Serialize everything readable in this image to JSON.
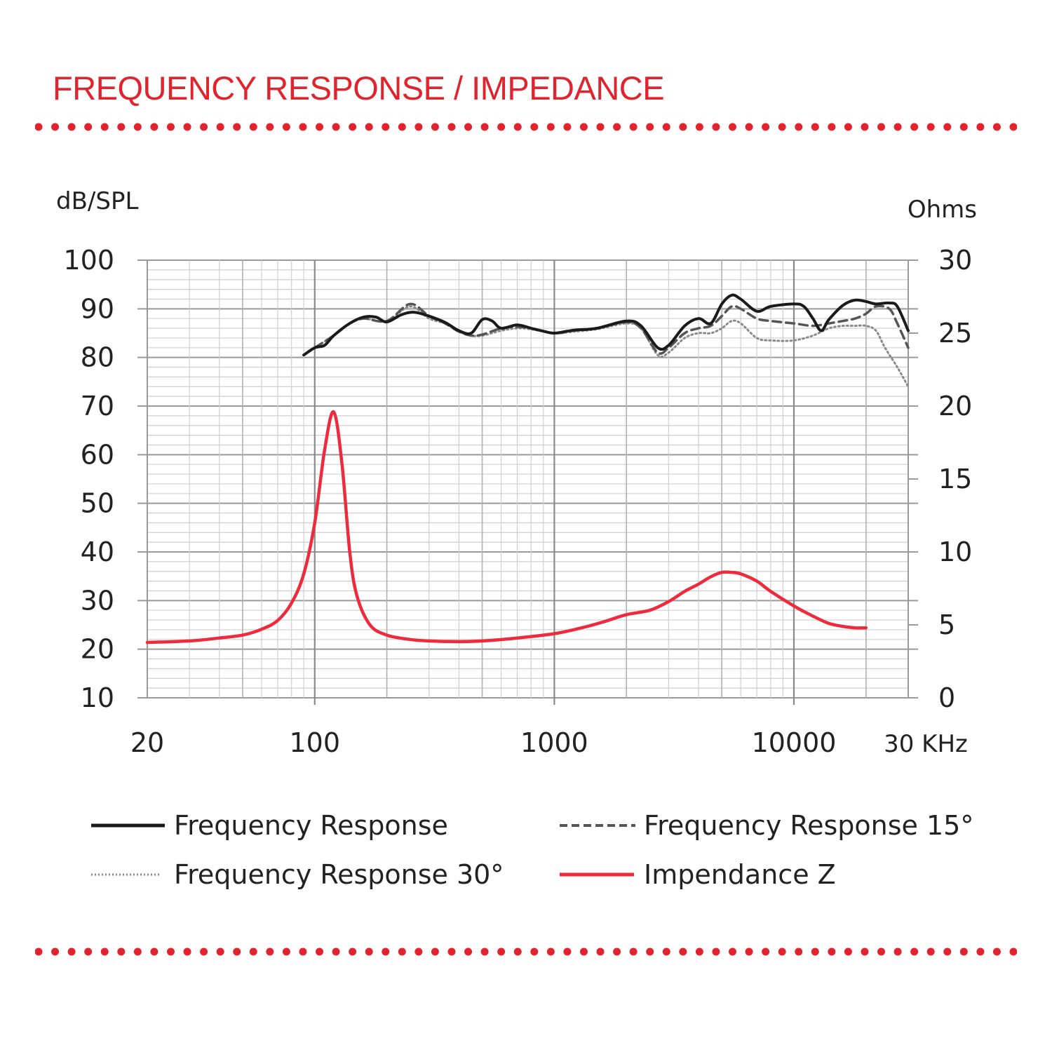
{
  "header": {
    "title": "FREQUENCY RESPONSE / IMPEDANCE"
  },
  "colors": {
    "accent_red": "#e0232d",
    "grid_major": "#9a9a9a",
    "grid_minor": "#cfcfcf",
    "response_black": "#1a1a1a",
    "response_15": "#555555",
    "response_30": "#8a8a8a",
    "impedance_red": "#ee2a3d"
  },
  "chart_data": {
    "type": "line",
    "title": "",
    "xlabel": "",
    "ylabel_left": "dB/SPL",
    "ylabel_right": "Ohms",
    "x_scale": "log",
    "xlim": [
      20,
      30000
    ],
    "ylim_left": [
      10,
      100
    ],
    "ylim_right": [
      0,
      30
    ],
    "grid": true,
    "x_ticks": [
      {
        "value": 20,
        "label": "20"
      },
      {
        "value": 100,
        "label": "100"
      },
      {
        "value": 1000,
        "label": "1000"
      },
      {
        "value": 10000,
        "label": "10000"
      },
      {
        "value": 30000,
        "label": "30 KHz"
      }
    ],
    "y_ticks_left": [
      "100",
      "90",
      "80",
      "70",
      "60",
      "50",
      "40",
      "30",
      "20",
      "10"
    ],
    "y_ticks_right": [
      "30",
      "25",
      "20",
      "15",
      "10",
      "5",
      "0"
    ],
    "series": [
      {
        "name": "Frequency Response",
        "axis": "left",
        "style": "solid",
        "points": [
          [
            90,
            80.5
          ],
          [
            100,
            82
          ],
          [
            110,
            82.5
          ],
          [
            120,
            84.5
          ],
          [
            140,
            87
          ],
          [
            160,
            88.3
          ],
          [
            180,
            88.3
          ],
          [
            200,
            87.3
          ],
          [
            230,
            88.8
          ],
          [
            260,
            89.3
          ],
          [
            300,
            88.5
          ],
          [
            350,
            87.2
          ],
          [
            400,
            85.5
          ],
          [
            450,
            85
          ],
          [
            500,
            87.8
          ],
          [
            550,
            87.5
          ],
          [
            600,
            86
          ],
          [
            700,
            86.7
          ],
          [
            800,
            86
          ],
          [
            900,
            85.4
          ],
          [
            1000,
            85
          ],
          [
            1200,
            85.6
          ],
          [
            1500,
            86
          ],
          [
            2000,
            87.5
          ],
          [
            2300,
            86.5
          ],
          [
            2700,
            82
          ],
          [
            3000,
            82.5
          ],
          [
            3500,
            86.5
          ],
          [
            4000,
            88
          ],
          [
            4500,
            87
          ],
          [
            5000,
            91
          ],
          [
            5500,
            92.8
          ],
          [
            6000,
            92
          ],
          [
            7000,
            89.5
          ],
          [
            8000,
            90.5
          ],
          [
            10000,
            91
          ],
          [
            11000,
            90.5
          ],
          [
            12000,
            88
          ],
          [
            13000,
            85.5
          ],
          [
            14000,
            87.8
          ],
          [
            16000,
            90.7
          ],
          [
            18000,
            91.8
          ],
          [
            20000,
            91.5
          ],
          [
            22000,
            91
          ],
          [
            25000,
            91.2
          ],
          [
            27000,
            90.5
          ],
          [
            30000,
            85.5
          ]
        ]
      },
      {
        "name": "Frequency Response 15°",
        "axis": "left",
        "style": "dashed",
        "points": [
          [
            90,
            80.5
          ],
          [
            100,
            82
          ],
          [
            120,
            84.5
          ],
          [
            140,
            87
          ],
          [
            160,
            88
          ],
          [
            200,
            87.5
          ],
          [
            250,
            91
          ],
          [
            300,
            88.5
          ],
          [
            350,
            87
          ],
          [
            400,
            85.3
          ],
          [
            450,
            84.5
          ],
          [
            500,
            84.7
          ],
          [
            600,
            86
          ],
          [
            700,
            86.3
          ],
          [
            800,
            86
          ],
          [
            1000,
            85
          ],
          [
            1200,
            85.5
          ],
          [
            1500,
            86
          ],
          [
            2000,
            87.3
          ],
          [
            2300,
            86
          ],
          [
            2700,
            81
          ],
          [
            3000,
            82
          ],
          [
            3500,
            85
          ],
          [
            4000,
            86
          ],
          [
            4500,
            86.5
          ],
          [
            5000,
            88.5
          ],
          [
            5500,
            90.5
          ],
          [
            6000,
            90
          ],
          [
            7000,
            88
          ],
          [
            8000,
            87.5
          ],
          [
            10000,
            87
          ],
          [
            12000,
            86.5
          ],
          [
            14000,
            87
          ],
          [
            16000,
            87.5
          ],
          [
            18000,
            88
          ],
          [
            20000,
            89
          ],
          [
            22000,
            90.5
          ],
          [
            25000,
            90
          ],
          [
            27000,
            87
          ],
          [
            30000,
            82
          ]
        ]
      },
      {
        "name": "Frequency Response 30°",
        "axis": "left",
        "style": "dotted",
        "points": [
          [
            90,
            80.5
          ],
          [
            100,
            82
          ],
          [
            120,
            84.5
          ],
          [
            140,
            87
          ],
          [
            160,
            88
          ],
          [
            200,
            87.5
          ],
          [
            250,
            90.5
          ],
          [
            300,
            88
          ],
          [
            350,
            87
          ],
          [
            400,
            85.3
          ],
          [
            450,
            84.5
          ],
          [
            500,
            84.5
          ],
          [
            600,
            85.5
          ],
          [
            700,
            86
          ],
          [
            800,
            85.8
          ],
          [
            1000,
            85
          ],
          [
            1200,
            85.3
          ],
          [
            1500,
            85.8
          ],
          [
            2000,
            87
          ],
          [
            2300,
            86
          ],
          [
            2700,
            80.5
          ],
          [
            3000,
            81
          ],
          [
            3500,
            84
          ],
          [
            4000,
            85
          ],
          [
            4500,
            85
          ],
          [
            5000,
            86
          ],
          [
            5500,
            87.5
          ],
          [
            6000,
            87
          ],
          [
            7000,
            84
          ],
          [
            8000,
            83.5
          ],
          [
            10000,
            83.5
          ],
          [
            12000,
            84.5
          ],
          [
            14000,
            86
          ],
          [
            16000,
            86.5
          ],
          [
            18000,
            86.5
          ],
          [
            20000,
            86.5
          ],
          [
            22000,
            85.5
          ],
          [
            24000,
            82
          ],
          [
            27000,
            78
          ],
          [
            30000,
            74
          ]
        ]
      },
      {
        "name": "Impendance Z",
        "axis": "right",
        "style": "solid",
        "points": [
          [
            20,
            3.8
          ],
          [
            30,
            3.9
          ],
          [
            40,
            4.1
          ],
          [
            50,
            4.3
          ],
          [
            60,
            4.7
          ],
          [
            70,
            5.3
          ],
          [
            80,
            6.5
          ],
          [
            90,
            8.5
          ],
          [
            100,
            12
          ],
          [
            110,
            17
          ],
          [
            120,
            19.6
          ],
          [
            130,
            16
          ],
          [
            140,
            10
          ],
          [
            150,
            7
          ],
          [
            170,
            5
          ],
          [
            200,
            4.3
          ],
          [
            250,
            4.0
          ],
          [
            300,
            3.9
          ],
          [
            400,
            3.85
          ],
          [
            500,
            3.9
          ],
          [
            700,
            4.1
          ],
          [
            1000,
            4.4
          ],
          [
            1300,
            4.8
          ],
          [
            1600,
            5.2
          ],
          [
            2000,
            5.7
          ],
          [
            2500,
            6.0
          ],
          [
            3000,
            6.6
          ],
          [
            3500,
            7.3
          ],
          [
            4000,
            7.8
          ],
          [
            4500,
            8.3
          ],
          [
            5000,
            8.6
          ],
          [
            5500,
            8.6
          ],
          [
            6000,
            8.5
          ],
          [
            7000,
            8.0
          ],
          [
            8000,
            7.3
          ],
          [
            10000,
            6.3
          ],
          [
            12000,
            5.6
          ],
          [
            14000,
            5.1
          ],
          [
            16000,
            4.9
          ],
          [
            18000,
            4.8
          ],
          [
            20000,
            4.8
          ]
        ]
      }
    ]
  },
  "legend": {
    "items": [
      {
        "label": "Frequency Response"
      },
      {
        "label": "Frequency Response 15°"
      },
      {
        "label": "Frequency Response 30°"
      },
      {
        "label": "Impendance Z"
      }
    ]
  }
}
